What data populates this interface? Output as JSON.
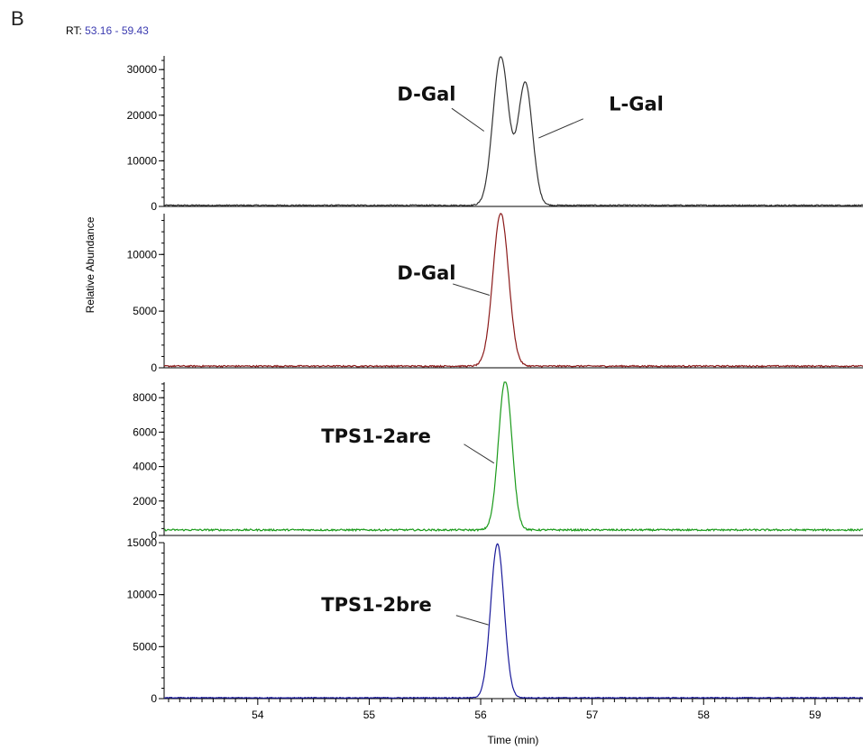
{
  "figure": {
    "panel_letter": "B",
    "rt_prefix": "RT: ",
    "rt_range": "53.16 - 59.43"
  },
  "colors": {
    "trace_1": "#333333",
    "trace_2": "#8b1a1a",
    "trace_3": "#1a9a1a",
    "trace_4": "#1a1a9a",
    "rt_value": "#3b3bb0"
  },
  "chart_data": [
    {
      "type": "line",
      "xlim": [
        53.16,
        59.43
      ],
      "ylim": [
        0,
        33000
      ],
      "y_ticks": [
        0,
        10000,
        20000,
        30000
      ],
      "y_tick_labels": [
        "0",
        "10000",
        "20000",
        "30000"
      ],
      "baseline": 250,
      "noise": 120,
      "peaks": [
        {
          "center": 56.18,
          "height": 32500,
          "width": 0.07
        },
        {
          "center": 56.4,
          "height": 26800,
          "width": 0.065
        }
      ],
      "annotations": [
        {
          "text": "D-Gal",
          "x": 55.25,
          "y": 23200,
          "line_from": [
            55.74,
            21500
          ],
          "line_to": [
            56.03,
            16500
          ]
        },
        {
          "text": "L-Gal",
          "x": 57.15,
          "y": 21000,
          "line_from": [
            56.92,
            19200
          ],
          "line_to": [
            56.52,
            15000
          ]
        }
      ]
    },
    {
      "type": "line",
      "xlim": [
        53.16,
        59.43
      ],
      "ylim": [
        0,
        13600
      ],
      "y_ticks": [
        0,
        5000,
        10000
      ],
      "y_tick_labels": [
        "0",
        "5000",
        "10000"
      ],
      "baseline": 150,
      "noise": 60,
      "peaks": [
        {
          "center": 56.18,
          "height": 13500,
          "width": 0.07
        }
      ],
      "annotations": [
        {
          "text": "D-Gal",
          "x": 55.25,
          "y": 7800,
          "line_from": [
            55.75,
            7400
          ],
          "line_to": [
            56.08,
            6400
          ]
        }
      ]
    },
    {
      "type": "line",
      "xlim": [
        53.16,
        59.43
      ],
      "ylim": [
        0,
        8900
      ],
      "y_ticks": [
        0,
        2000,
        4000,
        6000,
        8000
      ],
      "y_tick_labels": [
        "0",
        "2000",
        "4000",
        "6000",
        "8000"
      ],
      "baseline": 320,
      "noise": 50,
      "peaks": [
        {
          "center": 56.22,
          "height": 8700,
          "width": 0.06
        }
      ],
      "annotations": [
        {
          "text": "TPS1-2are",
          "x": 54.57,
          "y": 5400,
          "line_from": [
            55.85,
            5300
          ],
          "line_to": [
            56.12,
            4200
          ]
        }
      ]
    },
    {
      "type": "line",
      "xlim": [
        53.16,
        59.43
      ],
      "ylim": [
        0,
        15000
      ],
      "y_ticks": [
        0,
        5000,
        10000,
        15000
      ],
      "y_tick_labels": [
        "0",
        "5000",
        "10000",
        "15000"
      ],
      "baseline": 80,
      "noise": 40,
      "peaks": [
        {
          "center": 56.15,
          "height": 14800,
          "width": 0.06
        }
      ],
      "annotations": [
        {
          "text": "TPS1-2bre",
          "x": 54.57,
          "y": 8400,
          "line_from": [
            55.78,
            8000
          ],
          "line_to": [
            56.07,
            7100
          ]
        }
      ]
    }
  ],
  "axes": {
    "x_ticks": [
      54,
      55,
      56,
      57,
      58,
      59
    ],
    "x_tick_labels": [
      "54",
      "55",
      "56",
      "57",
      "58",
      "59"
    ],
    "xlabel": "Time (min)",
    "ylabel": "Relative Abundance"
  }
}
